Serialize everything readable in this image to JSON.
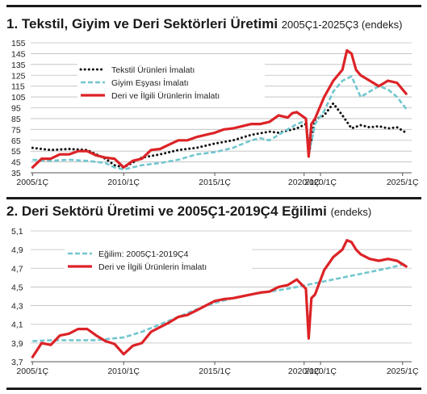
{
  "colors": {
    "tekstil": "#111111",
    "giyim": "#72c6cf",
    "deri": "#dc2327",
    "grid": "#bdbdbd"
  },
  "chart_data": [
    {
      "type": "line",
      "title": "1. Tekstil, Giyim ve Deri Sektörleri Üretimi",
      "subtitle": "2005Ç1-2025Ç3 (endeks)",
      "xlabel": "",
      "ylabel": "",
      "x_tick_labels": [
        "2005/1Ç",
        "2010/1Ç",
        "2015/1Ç",
        "2020/1Ç",
        "2020/1Ç",
        "2025/1Ç"
      ],
      "y_ticks": [
        35,
        45,
        55,
        65,
        75,
        85,
        95,
        105,
        115,
        125,
        135,
        145,
        155
      ],
      "ylim": [
        35,
        155
      ],
      "grid": true,
      "legend_position": "top-left",
      "series": [
        {
          "name": "Tekstil Ürünleri İmalatı",
          "style": "dotted",
          "color": "#111111",
          "x": [
            2005.0,
            2006.0,
            2007.0,
            2008.0,
            2008.5,
            2009.0,
            2009.5,
            2010.0,
            2011.0,
            2012.0,
            2013.0,
            2014.0,
            2015.0,
            2016.0,
            2017.0,
            2018.0,
            2018.5,
            2019.0,
            2019.5,
            2020.0,
            2020.2,
            2020.5,
            2021.0,
            2021.5,
            2022.0,
            2022.5,
            2023.0,
            2023.5,
            2024.0,
            2024.5,
            2025.0,
            2025.5
          ],
          "y": [
            58,
            56,
            57,
            56,
            52,
            48,
            42,
            40,
            49,
            52,
            56,
            58,
            62,
            65,
            70,
            73,
            72,
            74,
            76,
            80,
            56,
            84,
            88,
            99,
            88,
            76,
            79,
            77,
            78,
            76,
            77,
            72
          ]
        },
        {
          "name": "Giyim Eşyası İmalatı",
          "style": "dashed",
          "color": "#72c6cf",
          "x": [
            2005.0,
            2006.0,
            2007.0,
            2008.0,
            2009.0,
            2009.5,
            2010.0,
            2011.0,
            2012.0,
            2013.0,
            2014.0,
            2015.0,
            2016.0,
            2017.0,
            2017.5,
            2018.0,
            2018.5,
            2019.0,
            2019.5,
            2020.0,
            2020.2,
            2020.5,
            2021.0,
            2021.5,
            2022.0,
            2022.5,
            2023.0,
            2023.5,
            2024.0,
            2024.5,
            2025.0,
            2025.5
          ],
          "y": [
            47,
            46,
            47,
            46,
            44,
            40,
            38,
            42,
            44,
            47,
            52,
            54,
            58,
            65,
            67,
            65,
            70,
            75,
            80,
            83,
            55,
            80,
            92,
            110,
            120,
            124,
            105,
            110,
            115,
            112,
            105,
            94
          ]
        },
        {
          "name": "Deri ve İlgili Ürünlerin İmalatı",
          "style": "solid",
          "color": "#dc2327",
          "x": [
            2005.0,
            2005.5,
            2006.0,
            2006.5,
            2007.0,
            2007.5,
            2008.0,
            2008.5,
            2009.0,
            2009.5,
            2010.0,
            2010.5,
            2011.0,
            2011.5,
            2012.0,
            2012.5,
            2013.0,
            2013.5,
            2014.0,
            2014.5,
            2015.0,
            2015.5,
            2016.0,
            2016.5,
            2017.0,
            2017.5,
            2018.0,
            2018.5,
            2019.0,
            2019.25,
            2019.5,
            2019.75,
            2020.0,
            2020.15,
            2020.3,
            2020.5,
            2021.0,
            2021.5,
            2022.0,
            2022.25,
            2022.5,
            2022.75,
            2023.0,
            2023.5,
            2024.0,
            2024.5,
            2025.0,
            2025.5
          ],
          "y": [
            40,
            48,
            48,
            52,
            52,
            55,
            55,
            51,
            49,
            48,
            40,
            46,
            48,
            56,
            57,
            61,
            65,
            65,
            68,
            70,
            72,
            75,
            76,
            78,
            80,
            80,
            82,
            88,
            86,
            90,
            91,
            88,
            85,
            50,
            80,
            85,
            105,
            120,
            130,
            148,
            145,
            130,
            125,
            120,
            115,
            120,
            118,
            108
          ]
        }
      ]
    },
    {
      "type": "line",
      "title": "2. Deri Sektörü Üretimi ve 2005Ç1-2019Ç4 Eğilimi",
      "subtitle": "(endeks)",
      "xlabel": "",
      "ylabel": "",
      "x_tick_labels": [
        "2005/1Ç",
        "2010/1Ç",
        "2015/1Ç",
        "2020/1Ç",
        "2020/1Ç",
        "2025/1Ç"
      ],
      "y_ticks": [
        3.7,
        3.9,
        4.1,
        4.3,
        4.5,
        4.7,
        4.9,
        5.1
      ],
      "y_tick_labels": [
        "3,7",
        "3,9",
        "4,1",
        "4,3",
        "4,5",
        "4,7",
        "4,9",
        "5,1"
      ],
      "ylim": [
        3.7,
        5.1
      ],
      "grid": true,
      "legend_position": "top-left",
      "series": [
        {
          "name": "Eğilim: 2005Ç1-2019Ç4",
          "style": "dashed",
          "color": "#72c6cf",
          "x": [
            2005.0,
            2006.0,
            2007.0,
            2008.0,
            2008.5,
            2009.0,
            2010.0,
            2011.0,
            2012.0,
            2013.0,
            2014.0,
            2015.0,
            2016.0,
            2017.0,
            2018.0,
            2019.0,
            2019.75,
            2020.5,
            2021.5,
            2022.5,
            2023.5,
            2024.5,
            2025.5
          ],
          "y": [
            3.92,
            3.93,
            3.93,
            3.93,
            3.93,
            3.94,
            3.96,
            4.02,
            4.1,
            4.18,
            4.26,
            4.33,
            4.38,
            4.42,
            4.45,
            4.48,
            4.51,
            4.54,
            4.58,
            4.62,
            4.66,
            4.7,
            4.75
          ]
        },
        {
          "name": "Deri ve İlgili Ürünlerin İmalatı",
          "style": "solid",
          "color": "#dc2327",
          "x": [
            2005.0,
            2005.5,
            2006.0,
            2006.5,
            2007.0,
            2007.5,
            2008.0,
            2008.5,
            2009.0,
            2009.5,
            2010.0,
            2010.5,
            2011.0,
            2011.5,
            2012.0,
            2012.5,
            2013.0,
            2013.5,
            2014.0,
            2014.5,
            2015.0,
            2015.5,
            2016.0,
            2016.5,
            2017.0,
            2017.5,
            2018.0,
            2018.5,
            2019.0,
            2019.25,
            2019.5,
            2019.75,
            2020.0,
            2020.15,
            2020.3,
            2020.5,
            2021.0,
            2021.5,
            2022.0,
            2022.25,
            2022.5,
            2022.75,
            2023.0,
            2023.5,
            2024.0,
            2024.5,
            2025.0,
            2025.5
          ],
          "y": [
            3.75,
            3.9,
            3.88,
            3.98,
            4.0,
            4.05,
            4.05,
            3.98,
            3.92,
            3.89,
            3.78,
            3.87,
            3.9,
            4.02,
            4.07,
            4.12,
            4.18,
            4.2,
            4.25,
            4.3,
            4.35,
            4.37,
            4.38,
            4.4,
            4.42,
            4.44,
            4.45,
            4.5,
            4.52,
            4.55,
            4.58,
            4.53,
            4.48,
            3.95,
            4.38,
            4.42,
            4.68,
            4.82,
            4.9,
            5.0,
            4.98,
            4.9,
            4.85,
            4.8,
            4.78,
            4.8,
            4.78,
            4.72
          ]
        }
      ]
    }
  ]
}
